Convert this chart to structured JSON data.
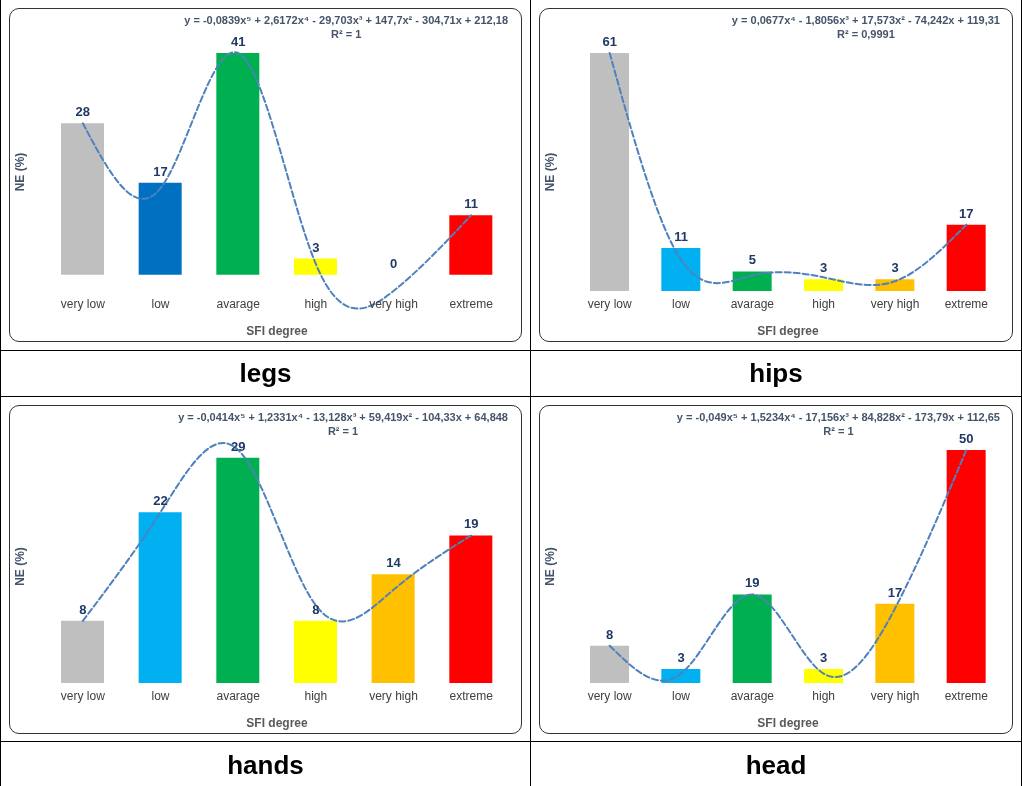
{
  "chart_data": [
    {
      "type": "bar",
      "title": "legs",
      "xlabel": "SFI degree",
      "ylabel": "NE (%)",
      "categories": [
        "very low",
        "low",
        "avarage",
        "high",
        "very high",
        "extreme"
      ],
      "tick_labels": "x",
      "annotations": [
        "y = -0,0839x⁵ + 2,6172x⁴ - 29,703x³ + 147,7x² - 304,71x + 212,18",
        "R² = 1"
      ],
      "series": [
        {
          "values": [
            28,
            17,
            41,
            3,
            0,
            11
          ],
          "value_labels": [
            "28",
            "17",
            "41",
            "3",
            "0",
            "11"
          ],
          "colors": [
            "#bfbfbf",
            "#0070c0",
            "#00b050",
            "#ffff00",
            "#ffc000",
            "#ff0000"
          ]
        },
        {
          "type": "line",
          "color": "#4f81bd",
          "line_style": "dashed",
          "values": [
            28,
            16,
            41,
            2,
            -3,
            11
          ]
        }
      ]
    },
    {
      "type": "bar",
      "title": "hips",
      "xlabel": "SFI degree",
      "ylabel": "NE (%)",
      "categories": [
        "very low",
        "low",
        "avarage",
        "high",
        "very high",
        "extreme"
      ],
      "tick_labels": "x",
      "annotations": [
        "y = 0,0677x⁴ - 1,8056x³ + 17,573x² - 74,242x + 119,31",
        "R² = 0,9991"
      ],
      "series": [
        {
          "values": [
            61,
            11,
            5,
            3,
            3,
            17
          ],
          "value_labels": [
            "61",
            "11",
            "5",
            "3",
            "3",
            "17"
          ],
          "colors": [
            "#bfbfbf",
            "#00b0f0",
            "#00b050",
            "#ffff00",
            "#ffc000",
            "#ff0000"
          ]
        },
        {
          "type": "line",
          "color": "#4f81bd",
          "line_style": "dashed",
          "values": [
            61,
            8,
            4,
            3.5,
            2.5,
            17
          ]
        }
      ]
    },
    {
      "type": "bar",
      "title": "hands",
      "xlabel": "SFI degree",
      "ylabel": "NE (%)",
      "categories": [
        "very low",
        "low",
        "avarage",
        "high",
        "very high",
        "extreme"
      ],
      "tick_labels": "x",
      "annotations": [
        "y = -0,0414x⁵ + 1,2331x⁴ - 13,128x³ + 59,419x² - 104,33x + 64,848",
        "R² = 1"
      ],
      "series": [
        {
          "values": [
            8,
            22,
            29,
            8,
            14,
            19
          ],
          "value_labels": [
            "8",
            "22",
            "29",
            "8",
            "14",
            "19"
          ],
          "colors": [
            "#bfbfbf",
            "#00b0f0",
            "#00b050",
            "#ffff00",
            "#ffc000",
            "#ff0000"
          ]
        },
        {
          "type": "line",
          "color": "#4f81bd",
          "line_style": "dashed",
          "values": [
            8,
            22,
            30,
            10,
            12,
            19
          ]
        }
      ]
    },
    {
      "type": "bar",
      "title": "head",
      "xlabel": "SFI degree",
      "ylabel": "NE (%)",
      "categories": [
        "very low",
        "low",
        "avarage",
        "high",
        "very high",
        "extreme"
      ],
      "tick_labels": "x",
      "annotations": [
        "y = -0,049x⁵ + 1,5234x⁴ - 17,156x³ + 84,828x² - 173,79x + 112,65",
        "R² = 1"
      ],
      "series": [
        {
          "values": [
            8,
            3,
            19,
            3,
            17,
            50
          ],
          "value_labels": [
            "8",
            "3",
            "19",
            "3",
            "17",
            "50"
          ],
          "colors": [
            "#bfbfbf",
            "#00b0f0",
            "#00b050",
            "#ffff00",
            "#ffc000",
            "#ff0000"
          ]
        },
        {
          "type": "line",
          "color": "#4f81bd",
          "line_style": "dashed",
          "values": [
            8,
            2,
            19,
            2,
            16,
            50
          ]
        }
      ]
    }
  ]
}
